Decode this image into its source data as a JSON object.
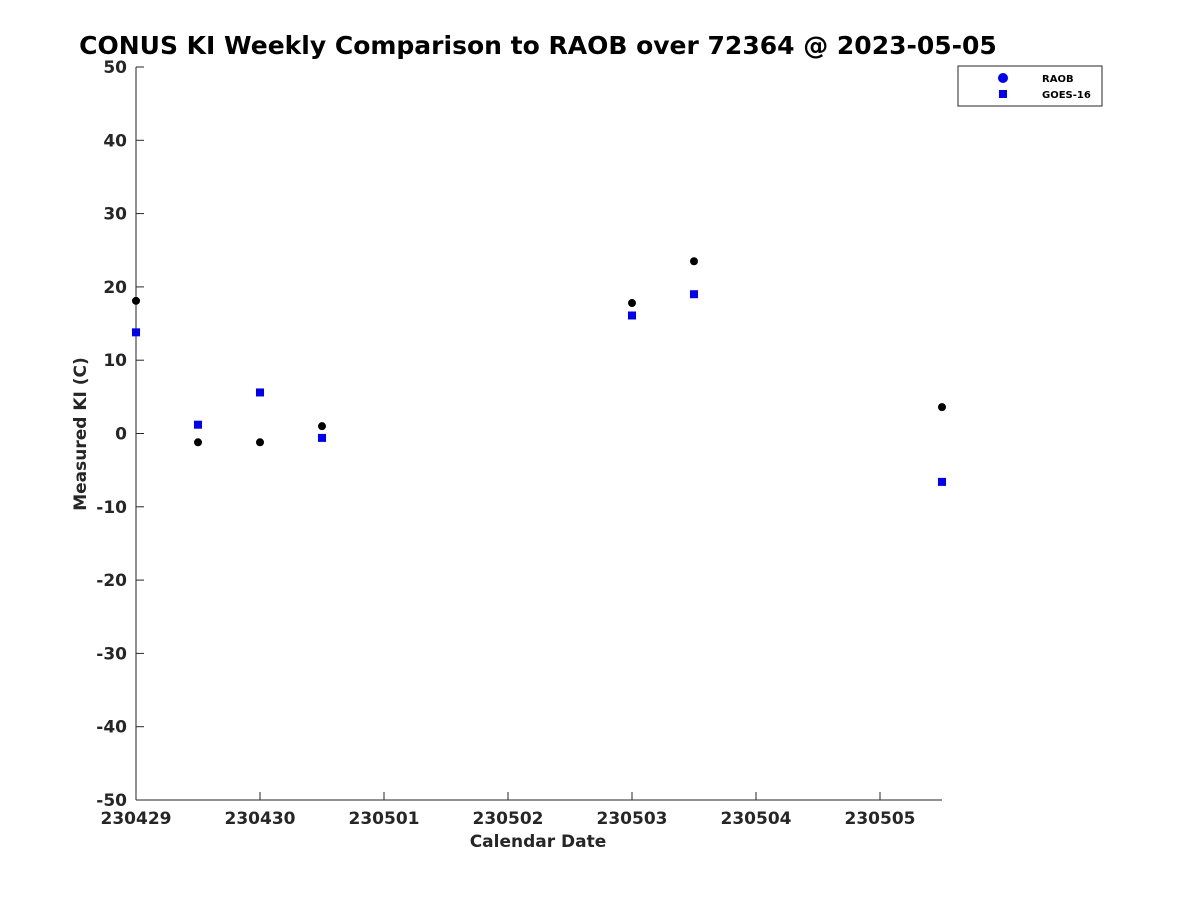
{
  "chart_data": {
    "type": "scatter",
    "title": "CONUS KI Weekly Comparison to RAOB over 72364 @ 2023-05-05",
    "xlabel": "Calendar Date",
    "ylabel": "Measured KI (C)",
    "xlim": [
      0,
      6.5
    ],
    "ylim": [
      -50,
      50
    ],
    "x_ticks": [
      0,
      1,
      2,
      3,
      4,
      5,
      6
    ],
    "x_tick_labels": [
      "230429",
      "230430",
      "230501",
      "230502",
      "230503",
      "230504",
      "230505"
    ],
    "y_ticks": [
      -50,
      -40,
      -30,
      -20,
      -10,
      0,
      10,
      20,
      30,
      40,
      50
    ],
    "y_tick_labels": [
      "-50",
      "-40",
      "-30",
      "-20",
      "-10",
      "0",
      "10",
      "20",
      "30",
      "40",
      "50"
    ],
    "grid": false,
    "legend_position": "top-right",
    "series": [
      {
        "name": "RAOB",
        "marker": "circle",
        "color": "#000000",
        "legend_color": "#0000ee",
        "points": [
          {
            "x": 0.0,
            "y": 18.1
          },
          {
            "x": 0.5,
            "y": -1.2
          },
          {
            "x": 1.0,
            "y": -1.2
          },
          {
            "x": 1.5,
            "y": 1.0
          },
          {
            "x": 4.0,
            "y": 17.8
          },
          {
            "x": 4.5,
            "y": 23.5
          },
          {
            "x": 6.5,
            "y": 3.6
          }
        ]
      },
      {
        "name": "GOES-16",
        "marker": "square",
        "color": "#0000ee",
        "legend_color": "#0000ee",
        "points": [
          {
            "x": 0.0,
            "y": 13.8
          },
          {
            "x": 0.5,
            "y": 1.2
          },
          {
            "x": 1.0,
            "y": 5.6
          },
          {
            "x": 1.5,
            "y": -0.6
          },
          {
            "x": 4.0,
            "y": 16.1
          },
          {
            "x": 4.5,
            "y": 19.0
          },
          {
            "x": 6.5,
            "y": -6.6
          }
        ]
      }
    ]
  }
}
